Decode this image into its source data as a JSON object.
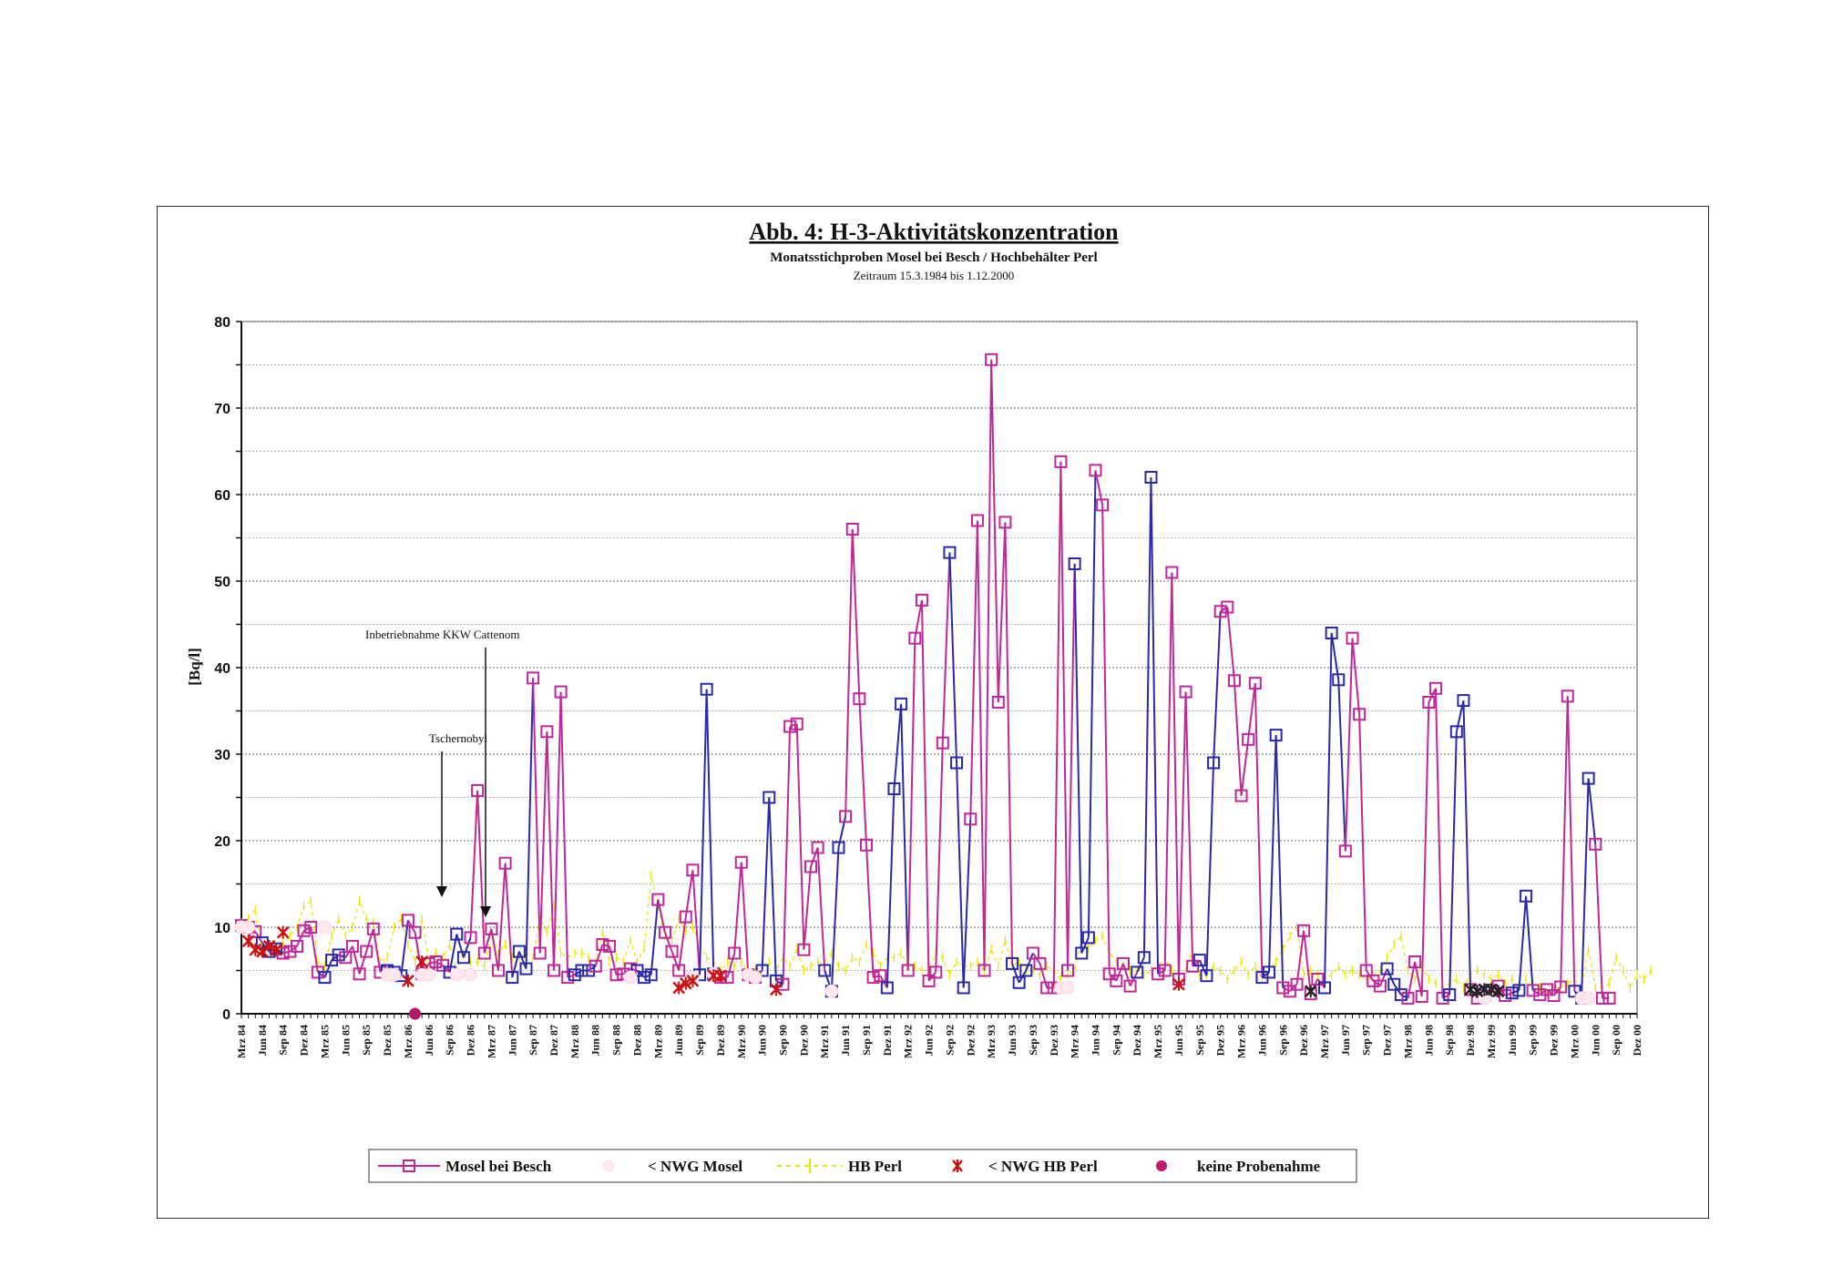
{
  "chart_data": {
    "type": "line",
    "title": "Abb. 4: H-3-Aktivitätskonzentration",
    "subtitle": "Monatsstichproben Mosel bei Besch / Hochbehälter Perl",
    "period": "Zeitraum 15.3.1984 bis 1.12.2000",
    "ylabel": "[Bq/l]",
    "ylim": [
      0,
      80
    ],
    "yticks": [
      0,
      10,
      20,
      30,
      40,
      50,
      60,
      70,
      80
    ],
    "grid": true,
    "legend_position": "bottom",
    "x_start": "Mrz 84",
    "x_labels": [
      "Mrz 84",
      "Jun 84",
      "Sep 84",
      "Dez 84",
      "Mrz 85",
      "Jun 85",
      "Sep 85",
      "Dez 85",
      "Mrz 86",
      "Jun 86",
      "Sep 86",
      "Dez 86",
      "Mrz 87",
      "Jun 87",
      "Sep 87",
      "Dez 87",
      "Mrz 88",
      "Jun 88",
      "Sep 88",
      "Dez 88",
      "Mrz 89",
      "Jun 89",
      "Sep 89",
      "Dez 89",
      "Mrz 90",
      "Jun 90",
      "Sep 90",
      "Dez 90",
      "Mrz 91",
      "Jun 91",
      "Sep 91",
      "Dez 91",
      "Mrz 92",
      "Jun 92",
      "Sep 92",
      "Dez 92",
      "Mrz 93",
      "Jun 93",
      "Sep 93",
      "Dez 93",
      "Mrz 94",
      "Jun 94",
      "Sep 94",
      "Dez 94",
      "Mrz 95",
      "Jun 95",
      "Sep 95",
      "Dez 95",
      "Mrz 96",
      "Jun 96",
      "Sep 96",
      "Dez 96",
      "Mrz 97",
      "Jun 97",
      "Sep 97",
      "Dez 97",
      "Mrz 98",
      "Jun 98",
      "Sep 98",
      "Dez 98",
      "Mrz 99",
      "Jun 99",
      "Sep 99",
      "Dez 99",
      "Mrz 00",
      "Jun 00",
      "Sep 00",
      "Dez 00"
    ],
    "series": [
      {
        "name": "Mosel bei Besch",
        "color": "#c0289a",
        "values": [
          10.2,
          10,
          9.5,
          8.2,
          7.2,
          7.5,
          7,
          7.2,
          7.8,
          9.6,
          10,
          4.8,
          4.2,
          6.2,
          6.8,
          6.5,
          7.8,
          4.6,
          7.2,
          9.8,
          4.8,
          5,
          4.8,
          4.4,
          10.8,
          9.4,
          4.6,
          5.8,
          6,
          5.6,
          4.8,
          9.2,
          6.5,
          8.8,
          25.8,
          7,
          9.8,
          5,
          17.4,
          4.2,
          7.2,
          5.2,
          38.8,
          7,
          32.6,
          5,
          37.2,
          4.2,
          4.5,
          5,
          5,
          5.5,
          8,
          7.8,
          4.5,
          4.6,
          5.2,
          5,
          4.2,
          4.5,
          13.2,
          9.4,
          7.2,
          5,
          11.2,
          16.6,
          4.5,
          37.5,
          4.6,
          4.2,
          4.2,
          7,
          17.5,
          4.5,
          4.2,
          5,
          25,
          3.8,
          3.4,
          33.2,
          33.5,
          7.4,
          17,
          19.2,
          5,
          2.6,
          19.2,
          22.8,
          56,
          36.4,
          19.5,
          4.2,
          4.4,
          3,
          26,
          35.8,
          5,
          43.4,
          47.8,
          3.8,
          4.8,
          31.3,
          53.3,
          29,
          3,
          22.5,
          57,
          5,
          75.6,
          36,
          56.8,
          5.8,
          3.6,
          5,
          7,
          5.8,
          3,
          3,
          63.8,
          5,
          52,
          7,
          8.8,
          62.8,
          58.8,
          4.6,
          3.8,
          5.8,
          3.2,
          4.8,
          6.5,
          62,
          4.6,
          5,
          51,
          4,
          37.2,
          5.5,
          6.2,
          4.4,
          29,
          46.5,
          47,
          38.5,
          25.2,
          31.7,
          38.2,
          4.2,
          4.8,
          32.2,
          3,
          2.6,
          3.4,
          9.6,
          2.3,
          4,
          3,
          44,
          38.6,
          18.8,
          43.4,
          34.6,
          5,
          3.8,
          3.2,
          5.2,
          3.4,
          2.2,
          1.8,
          6,
          2,
          36,
          37.6,
          1.8,
          2.2,
          32.6,
          36.2,
          2.8,
          1.8,
          2.1,
          2.7,
          3.2,
          2.1,
          2.4,
          2.7,
          13.6,
          2.7,
          2.2,
          2.8,
          2.1,
          3.1,
          36.7,
          2.6,
          1.8,
          27.2,
          19.6,
          1.8,
          1.8
        ],
        "colors_by_segment": "alternating magenta/blue"
      },
      {
        "name": "< NWG Mosel",
        "color": "#ffe0e8",
        "values": [
          10,
          10,
          null,
          null,
          null,
          null,
          null,
          null,
          null,
          null,
          null,
          null,
          10,
          null,
          null,
          null,
          null,
          null,
          null,
          null,
          null,
          4.5,
          4.5,
          null,
          null,
          null,
          4.5,
          4.5,
          null,
          null,
          null,
          4.5,
          null,
          4.5,
          null,
          null,
          null,
          null,
          null,
          null,
          null,
          null,
          null,
          null,
          null,
          null,
          null,
          null,
          null,
          null,
          null,
          null,
          null,
          null,
          null,
          null,
          4.2,
          null,
          null,
          null,
          null,
          null,
          null,
          null,
          null,
          4.2,
          null,
          null,
          4.6,
          null,
          null,
          null,
          null,
          4.5,
          4.2,
          null,
          null,
          null,
          null,
          null,
          null,
          null,
          null,
          null,
          null,
          2.6,
          null,
          null,
          null,
          null,
          null,
          null,
          null,
          null,
          null,
          null,
          null,
          null,
          null,
          null,
          null,
          null,
          null,
          null,
          null,
          null,
          null,
          null,
          null,
          null,
          null,
          null,
          null,
          null,
          null,
          null,
          null,
          null,
          3,
          3,
          null,
          null,
          null,
          null,
          null,
          null,
          null,
          null,
          null,
          null,
          null,
          null,
          null,
          null,
          null,
          null,
          null,
          null,
          null,
          null,
          null,
          null,
          null,
          null,
          null,
          null,
          null,
          null,
          null,
          null,
          null,
          null,
          null,
          null,
          null,
          null,
          null,
          null,
          null,
          null,
          null,
          null,
          null,
          null,
          null,
          null,
          null,
          null,
          null,
          null,
          null,
          null,
          null,
          null,
          null,
          null,
          null,
          null,
          null,
          1.8,
          null,
          null,
          null,
          null,
          null,
          null,
          null,
          null,
          null,
          null,
          null,
          null,
          null,
          1.8,
          1.8
        ]
      },
      {
        "name": "HB Perl",
        "color": "#e6e600",
        "values": [
          10.5,
          11,
          12,
          7.5,
          8,
          7,
          8,
          9,
          10,
          12.5,
          13,
          6,
          5.5,
          9,
          11,
          9,
          10,
          13,
          11,
          10.5,
          6,
          6.5,
          10,
          11,
          8,
          6,
          11,
          6,
          7,
          6.5,
          8,
          5,
          7,
          6,
          6,
          5.5,
          9.5,
          7,
          8,
          6.5,
          6.5,
          7,
          6.5,
          11,
          9.5,
          12.5,
          7,
          6.5,
          7,
          7,
          6.5,
          6,
          9.5,
          6,
          6.5,
          6,
          8.5,
          6,
          7.5,
          16,
          12.5,
          9,
          8.5,
          11,
          9.5,
          10,
          8,
          6.5,
          6,
          5,
          6,
          5.5,
          6,
          5,
          5,
          5.5,
          6,
          5,
          6.5,
          5.5,
          7.5,
          5,
          5.5,
          6,
          6,
          7,
          5.5,
          5,
          6.5,
          6,
          8,
          7,
          5.5,
          6.5,
          6.5,
          7,
          5.5,
          5.5,
          5,
          5,
          7,
          6.5,
          4.5,
          6,
          5.5,
          5.5,
          6,
          5,
          7.5,
          5.5,
          8.5,
          5.5,
          6,
          5,
          5,
          4.5,
          5.5,
          5,
          4,
          4.5,
          5,
          8.5,
          7.5,
          8.5,
          9,
          7,
          6,
          5.5,
          5,
          5,
          4.5,
          5,
          5.5,
          6.5,
          5,
          5,
          5,
          7.5,
          4.5,
          4.5,
          5.5,
          5,
          4,
          5,
          6,
          4.5,
          5.5,
          4,
          5,
          6,
          7.5,
          9,
          10,
          4.5,
          5,
          4.5,
          4,
          4.5,
          5.5,
          4.5,
          5,
          4.5,
          4,
          4.5,
          5,
          6.5,
          8,
          9,
          5,
          4,
          5.5,
          4,
          3.5,
          3,
          3.5,
          4,
          3,
          4.5,
          5,
          4.5,
          4,
          4.5,
          3.5,
          4,
          3,
          4,
          3.5,
          3,
          2.5,
          3,
          3,
          3.5,
          4,
          3,
          7.5,
          3,
          3,
          3.5,
          6.5,
          5,
          3,
          4.5,
          4,
          5
        ]
      },
      {
        "name": "< NWG HB Perl",
        "color": "#cc1111",
        "values": [
          null,
          8.4,
          7.4,
          7.2,
          7.8,
          7.4,
          9.4,
          null,
          null,
          null,
          null,
          null,
          null,
          null,
          null,
          null,
          null,
          null,
          null,
          null,
          null,
          null,
          null,
          null,
          3.8,
          null,
          6,
          null,
          null,
          null,
          null,
          null,
          null,
          null,
          null,
          null,
          null,
          null,
          null,
          null,
          null,
          null,
          null,
          null,
          null,
          null,
          null,
          null,
          null,
          null,
          null,
          null,
          null,
          null,
          null,
          null,
          null,
          null,
          null,
          null,
          null,
          null,
          null,
          3,
          3.5,
          3.8,
          null,
          null,
          4.4,
          4.4,
          null,
          null,
          null,
          null,
          null,
          null,
          null,
          2.8,
          null,
          null,
          null,
          null,
          null,
          null,
          null,
          null,
          null,
          null,
          null,
          null,
          null,
          null,
          null,
          null,
          null,
          null,
          null,
          null,
          null,
          null,
          null,
          null,
          null,
          null,
          null,
          null,
          null,
          null,
          null,
          null,
          null,
          null,
          null,
          null,
          null,
          null,
          null,
          null,
          null,
          null,
          null,
          null,
          null,
          null,
          null,
          null,
          null,
          null,
          null,
          null,
          null,
          null,
          null,
          null,
          null,
          3.4,
          null,
          null,
          null,
          null,
          null,
          null,
          null,
          null,
          null,
          null,
          null,
          null,
          null,
          null,
          null,
          null,
          null,
          null,
          2.6,
          null,
          null,
          null,
          null,
          null,
          null,
          null,
          null,
          null,
          null,
          null,
          null,
          null,
          null,
          null,
          null,
          null,
          null,
          null,
          null,
          null,
          null,
          2.8,
          2.6,
          2.8,
          2.8,
          2.6,
          null,
          null,
          null,
          null,
          null,
          null,
          null,
          null,
          null,
          null,
          null,
          null
        ]
      },
      {
        "name": "keine Probenahme",
        "color": "#a0105a",
        "values": [
          null,
          null,
          null,
          null,
          null,
          null,
          null,
          null,
          null,
          null,
          null,
          null,
          null,
          null,
          null,
          null,
          null,
          null,
          null,
          null,
          null,
          null,
          null,
          null,
          null,
          0,
          null
        ]
      }
    ],
    "annotations": [
      {
        "text": "Tschernobyl",
        "x": "Apr 86"
      },
      {
        "text": "Inbetriebnahme KKW Cattenom",
        "x": "Okt 86"
      }
    ]
  }
}
